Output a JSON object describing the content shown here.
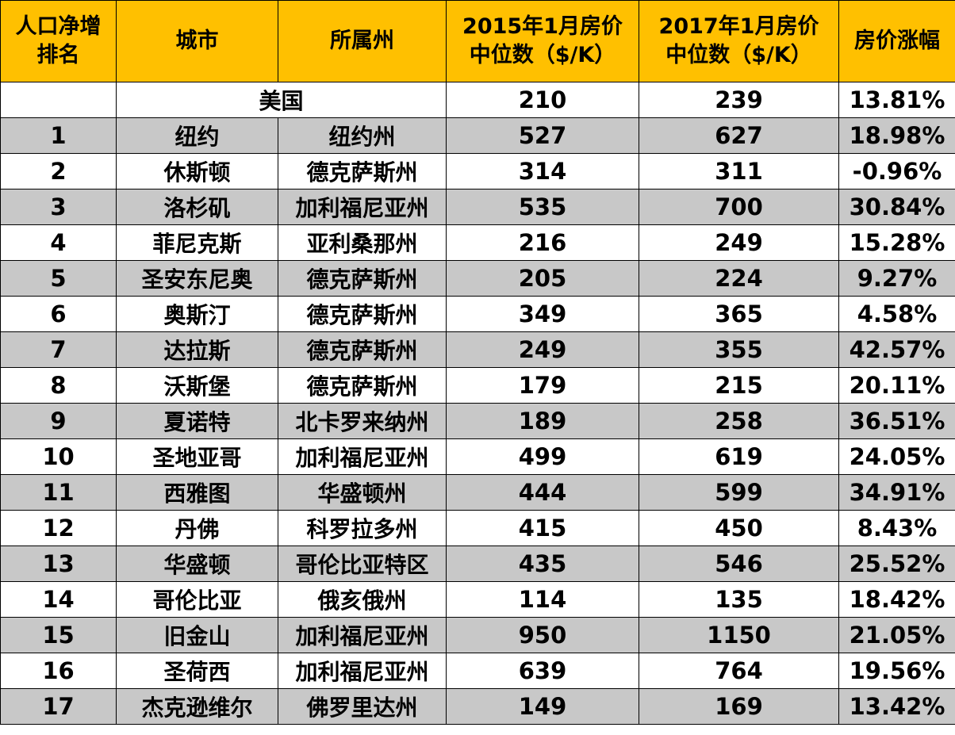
{
  "headers": {
    "rank": [
      "人口净增",
      "排名"
    ],
    "city": "城市",
    "state": "所属州",
    "price2015": [
      "2015年1月房价",
      "中位数（$/K）"
    ],
    "price2017": [
      "2017年1月房价",
      "中位数（$/K）"
    ],
    "change": "房价涨幅"
  },
  "national": {
    "label": "美国",
    "p2015": "210",
    "p2017": "239",
    "change": "13.81%"
  },
  "rows": [
    {
      "rank": "1",
      "city": "纽约",
      "state": "纽约州",
      "p2015": "527",
      "p2017": "627",
      "change": "18.98%"
    },
    {
      "rank": "2",
      "city": "休斯顿",
      "state": "德克萨斯州",
      "p2015": "314",
      "p2017": "311",
      "change": "-0.96%"
    },
    {
      "rank": "3",
      "city": "洛杉矶",
      "state": "加利福尼亚州",
      "p2015": "535",
      "p2017": "700",
      "change": "30.84%"
    },
    {
      "rank": "4",
      "city": "菲尼克斯",
      "state": "亚利桑那州",
      "p2015": "216",
      "p2017": "249",
      "change": "15.28%"
    },
    {
      "rank": "5",
      "city": "圣安东尼奥",
      "state": "德克萨斯州",
      "p2015": "205",
      "p2017": "224",
      "change": "9.27%"
    },
    {
      "rank": "6",
      "city": "奥斯汀",
      "state": "德克萨斯州",
      "p2015": "349",
      "p2017": "365",
      "change": "4.58%"
    },
    {
      "rank": "7",
      "city": "达拉斯",
      "state": "德克萨斯州",
      "p2015": "249",
      "p2017": "355",
      "change": "42.57%"
    },
    {
      "rank": "8",
      "city": "沃斯堡",
      "state": "德克萨斯州",
      "p2015": "179",
      "p2017": "215",
      "change": "20.11%"
    },
    {
      "rank": "9",
      "city": "夏诺特",
      "state": "北卡罗来纳州",
      "p2015": "189",
      "p2017": "258",
      "change": "36.51%"
    },
    {
      "rank": "10",
      "city": "圣地亚哥",
      "state": "加利福尼亚州",
      "p2015": "499",
      "p2017": "619",
      "change": "24.05%"
    },
    {
      "rank": "11",
      "city": "西雅图",
      "state": "华盛顿州",
      "p2015": "444",
      "p2017": "599",
      "change": "34.91%"
    },
    {
      "rank": "12",
      "city": "丹佛",
      "state": "科罗拉多州",
      "p2015": "415",
      "p2017": "450",
      "change": "8.43%"
    },
    {
      "rank": "13",
      "city": "华盛顿",
      "state": "哥伦比亚特区",
      "p2015": "435",
      "p2017": "546",
      "change": "25.52%"
    },
    {
      "rank": "14",
      "city": "哥伦比亚",
      "state": "俄亥俄州",
      "p2015": "114",
      "p2017": "135",
      "change": "18.42%"
    },
    {
      "rank": "15",
      "city": "旧金山",
      "state": "加利福尼亚州",
      "p2015": "950",
      "p2017": "1150",
      "change": "21.05%"
    },
    {
      "rank": "16",
      "city": "圣荷西",
      "state": "加利福尼亚州",
      "p2015": "639",
      "p2017": "764",
      "change": "19.56%"
    },
    {
      "rank": "17",
      "city": "杰克逊维尔",
      "state": "佛罗里达州",
      "p2015": "149",
      "p2017": "169",
      "change": "13.42%"
    }
  ],
  "colors": {
    "header_bg": "#ffc000",
    "stripe_gray": "#c8c8c8",
    "stripe_white": "#ffffff",
    "border": "#000000"
  }
}
